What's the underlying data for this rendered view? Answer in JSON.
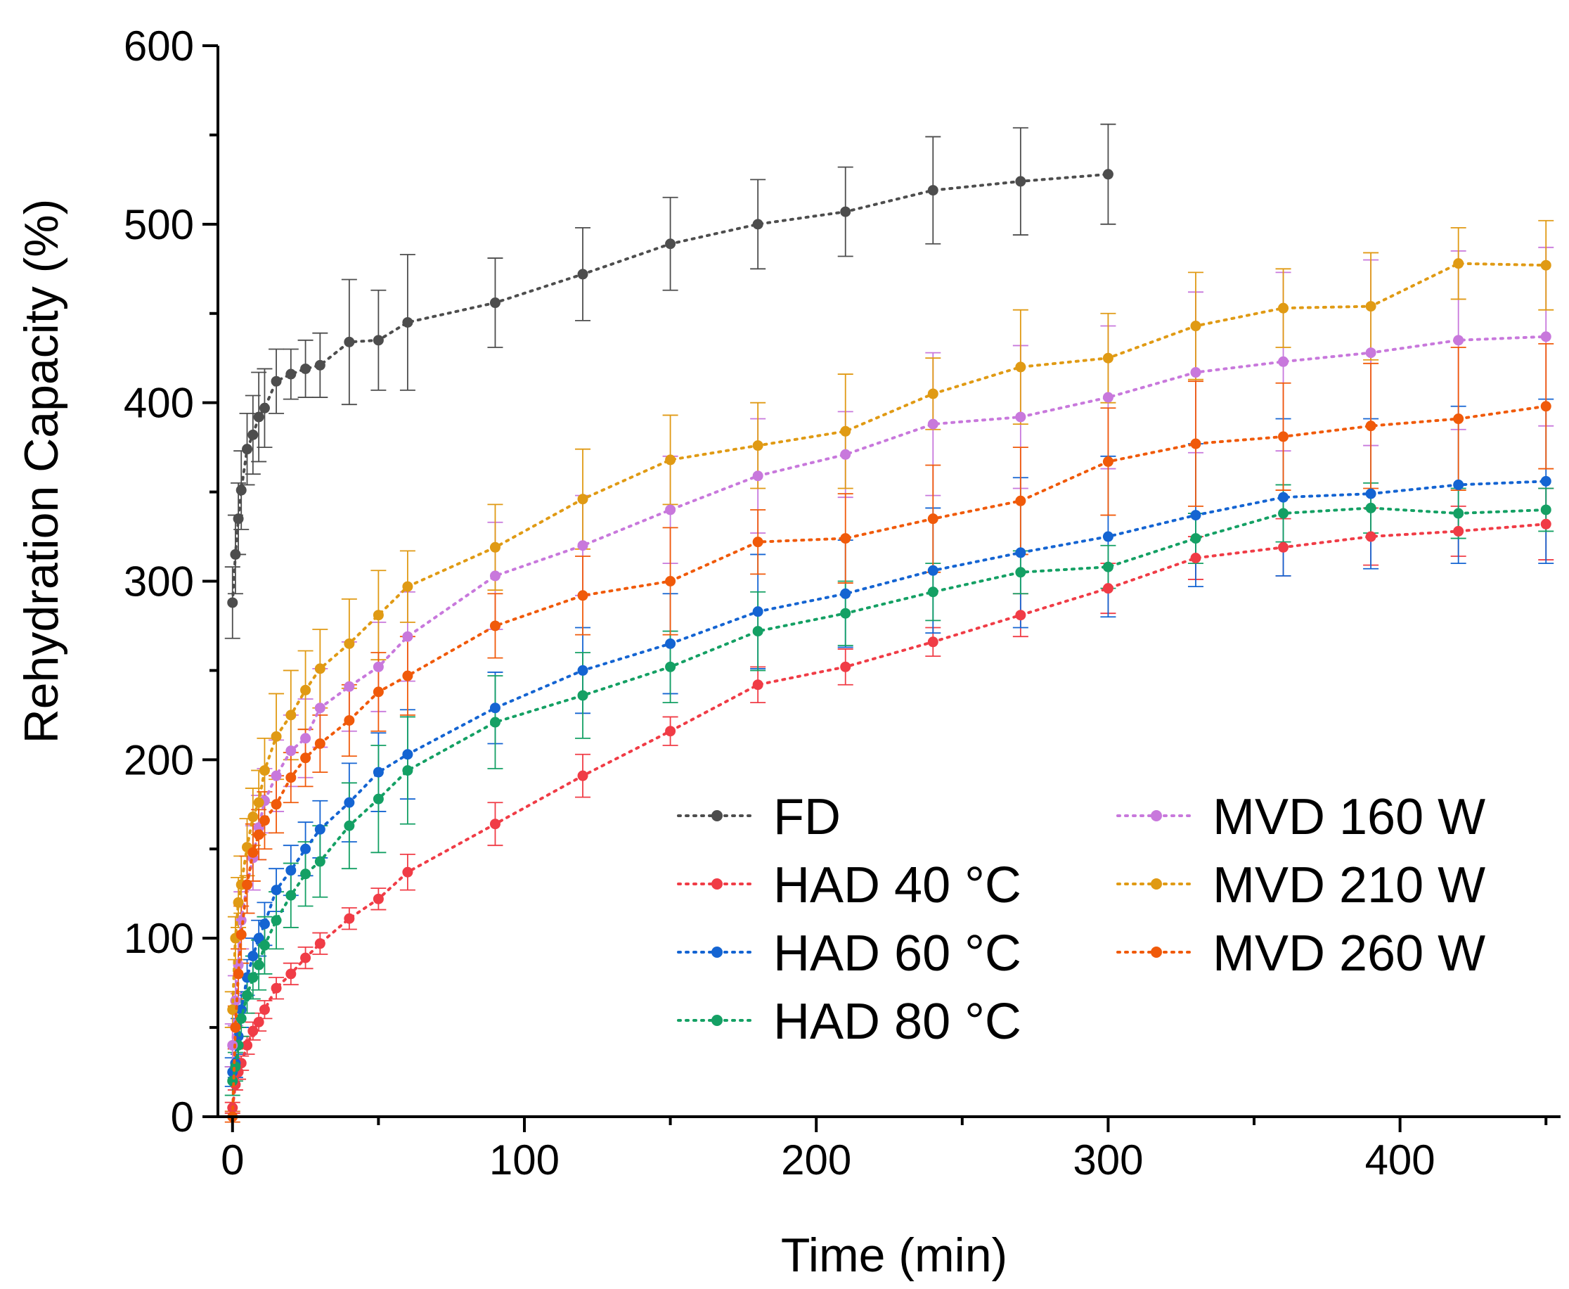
{
  "chart_data": {
    "type": "line",
    "xlabel": "Time (min)",
    "ylabel": "Rehydration Capacity (%)",
    "xlim": [
      -5,
      455
    ],
    "ylim": [
      0,
      600
    ],
    "x_ticks": [
      "0",
      "100",
      "200",
      "300",
      "400"
    ],
    "y_ticks": [
      "0",
      "100",
      "200",
      "300",
      "400",
      "500",
      "600"
    ],
    "grid": false,
    "legend": {
      "placement": "bottom-right",
      "columns": 2
    },
    "series": [
      {
        "name": "FD",
        "color": "#4d4d4d",
        "x": [
          0,
          1,
          2,
          3,
          5,
          7,
          9,
          11,
          15,
          20,
          25,
          30,
          40,
          50,
          60,
          90,
          120,
          150,
          180,
          210,
          240,
          270,
          300
        ],
        "y": [
          288,
          315,
          335,
          351,
          374,
          382,
          392,
          397,
          412,
          416,
          419,
          421,
          434,
          435,
          445,
          456,
          472,
          489,
          500,
          507,
          519,
          524,
          528
        ],
        "err": [
          20,
          22,
          20,
          22,
          20,
          22,
          25,
          22,
          18,
          14,
          16,
          18,
          35,
          28,
          38,
          25,
          26,
          26,
          25,
          25,
          30,
          30,
          28
        ]
      },
      {
        "name": "HAD 40 °C",
        "color": "#f03c46",
        "x": [
          0,
          1,
          2,
          3,
          5,
          7,
          9,
          11,
          15,
          20,
          25,
          30,
          40,
          50,
          60,
          90,
          120,
          150,
          180,
          210,
          240,
          270,
          300,
          330,
          360,
          390,
          420,
          450
        ],
        "y": [
          5,
          18,
          25,
          30,
          40,
          48,
          53,
          60,
          72,
          80,
          89,
          97,
          111,
          122,
          137,
          164,
          191,
          216,
          242,
          252,
          266,
          281,
          296,
          313,
          319,
          325,
          328,
          332
        ],
        "err": [
          3,
          3,
          4,
          4,
          5,
          5,
          5,
          5,
          6,
          6,
          6,
          6,
          6,
          6,
          10,
          12,
          12,
          8,
          10,
          10,
          8,
          12,
          14,
          12,
          16,
          16,
          14,
          20
        ]
      },
      {
        "name": "HAD 60 °C",
        "color": "#1464d2",
        "x": [
          0,
          1,
          2,
          3,
          5,
          7,
          9,
          11,
          15,
          20,
          25,
          30,
          40,
          50,
          60,
          90,
          120,
          150,
          180,
          210,
          240,
          270,
          300,
          330,
          360,
          390,
          420,
          450
        ],
        "y": [
          25,
          30,
          45,
          60,
          78,
          90,
          100,
          108,
          127,
          138,
          150,
          161,
          176,
          193,
          203,
          229,
          250,
          265,
          283,
          293,
          306,
          316,
          325,
          337,
          347,
          349,
          354,
          356
        ],
        "err": [
          8,
          8,
          10,
          10,
          10,
          10,
          10,
          12,
          12,
          14,
          15,
          16,
          22,
          22,
          25,
          20,
          24,
          28,
          32,
          30,
          35,
          42,
          45,
          40,
          44,
          42,
          44,
          46
        ]
      },
      {
        "name": "HAD 80 °C",
        "color": "#14a064",
        "x": [
          0,
          1,
          2,
          3,
          5,
          7,
          9,
          11,
          15,
          20,
          25,
          30,
          40,
          50,
          60,
          90,
          120,
          150,
          180,
          210,
          240,
          270,
          300,
          330,
          360,
          390,
          420,
          450
        ],
        "y": [
          20,
          28,
          40,
          55,
          68,
          78,
          85,
          96,
          110,
          124,
          136,
          143,
          163,
          178,
          194,
          221,
          236,
          252,
          272,
          282,
          294,
          305,
          308,
          324,
          338,
          341,
          338,
          340
        ],
        "err": [
          8,
          8,
          10,
          10,
          10,
          12,
          14,
          16,
          16,
          18,
          18,
          20,
          24,
          30,
          30,
          26,
          24,
          20,
          22,
          18,
          16,
          12,
          12,
          14,
          16,
          14,
          14,
          12
        ]
      },
      {
        "name": "MVD 160 W",
        "color": "#c878dc",
        "x": [
          0,
          1,
          2,
          3,
          5,
          7,
          9,
          11,
          15,
          20,
          25,
          30,
          40,
          50,
          60,
          90,
          120,
          150,
          180,
          210,
          240,
          270,
          300,
          330,
          360,
          390,
          420,
          450
        ],
        "y": [
          40,
          65,
          85,
          110,
          130,
          145,
          162,
          177,
          191,
          205,
          212,
          229,
          241,
          252,
          269,
          303,
          320,
          340,
          359,
          371,
          388,
          392,
          403,
          417,
          423,
          428,
          435,
          437
        ],
        "err": [
          12,
          14,
          16,
          16,
          16,
          18,
          18,
          18,
          20,
          20,
          22,
          22,
          25,
          25,
          25,
          30,
          28,
          30,
          32,
          24,
          40,
          40,
          40,
          45,
          50,
          52,
          50,
          50
        ]
      },
      {
        "name": "MVD 210 W",
        "color": "#e09a14",
        "x": [
          0,
          1,
          2,
          3,
          5,
          7,
          9,
          11,
          15,
          20,
          25,
          30,
          40,
          50,
          60,
          90,
          120,
          150,
          180,
          210,
          240,
          270,
          300,
          330,
          360,
          390,
          420,
          450
        ],
        "y": [
          60,
          100,
          120,
          130,
          151,
          168,
          176,
          194,
          213,
          225,
          239,
          251,
          265,
          281,
          297,
          319,
          346,
          368,
          376,
          384,
          405,
          420,
          425,
          443,
          453,
          454,
          478,
          477
        ],
        "err": [
          10,
          12,
          14,
          16,
          16,
          16,
          18,
          18,
          24,
          25,
          22,
          22,
          25,
          25,
          20,
          24,
          28,
          25,
          24,
          32,
          20,
          32,
          25,
          30,
          22,
          30,
          20,
          25
        ]
      },
      {
        "name": "MVD 260 W",
        "color": "#f05a0a",
        "x": [
          0,
          1,
          2,
          3,
          5,
          7,
          9,
          11,
          15,
          20,
          25,
          30,
          40,
          50,
          60,
          90,
          120,
          150,
          180,
          210,
          240,
          270,
          300,
          330,
          360,
          390,
          420,
          450
        ],
        "y": [
          0,
          50,
          80,
          102,
          130,
          148,
          158,
          166,
          175,
          190,
          201,
          209,
          222,
          238,
          247,
          275,
          292,
          300,
          322,
          324,
          335,
          345,
          367,
          377,
          381,
          387,
          391,
          398
        ],
        "err": [
          3,
          12,
          14,
          16,
          16,
          16,
          14,
          16,
          16,
          14,
          16,
          16,
          20,
          22,
          22,
          18,
          22,
          30,
          18,
          25,
          30,
          30,
          30,
          35,
          30,
          35,
          40,
          35
        ]
      }
    ]
  }
}
